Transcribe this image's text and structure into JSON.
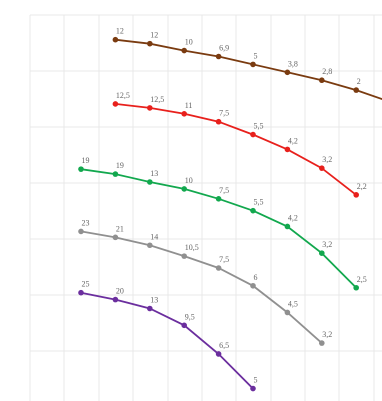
{
  "chart_data": {
    "type": "line",
    "title": "",
    "xlabel": "",
    "ylabel": "",
    "grid": true,
    "legend": "none",
    "ylim": [
      -4,
      30
    ],
    "x_count": 9,
    "series": [
      {
        "color": "#7a3b10",
        "x": [
          2,
          3,
          4,
          5,
          6,
          7,
          8,
          9,
          10
        ],
        "values": [
          27.5,
          27.1,
          26.4,
          25.8,
          25.0,
          24.2,
          23.4,
          22.4,
          21.2
        ],
        "labels": [
          "12",
          "12",
          "10",
          "6,9",
          "5",
          "3,8",
          "2,8",
          "2",
          ""
        ]
      },
      {
        "color": "#e8201c",
        "x": [
          2,
          3,
          4,
          5,
          6,
          7,
          8,
          9
        ],
        "values": [
          21.0,
          20.6,
          20.0,
          19.2,
          17.9,
          16.4,
          14.5,
          11.8
        ],
        "labels": [
          "12,5",
          "12,5",
          "11",
          "7,5",
          "5,5",
          "4,2",
          "3,2",
          "2,2"
        ]
      },
      {
        "color": "#12a84e",
        "x": [
          1,
          2,
          3,
          4,
          5,
          6,
          7,
          8,
          9
        ],
        "values": [
          14.4,
          13.9,
          13.1,
          12.4,
          11.4,
          10.2,
          8.6,
          5.9,
          2.4
        ],
        "labels": [
          "19",
          "19",
          "13",
          "10",
          "7,5",
          "5,5",
          "4,2",
          "3,2",
          "2,5"
        ]
      },
      {
        "color": "#909090",
        "x": [
          1,
          2,
          3,
          4,
          5,
          6,
          7,
          8
        ],
        "values": [
          8.1,
          7.5,
          6.7,
          5.6,
          4.4,
          2.6,
          -0.1,
          -3.2
        ],
        "labels": [
          "23",
          "21",
          "14",
          "10,5",
          "7,5",
          "6",
          "4,5",
          "3,2"
        ]
      },
      {
        "color": "#6b2e9e",
        "x": [
          1,
          2,
          3,
          4,
          5,
          6
        ],
        "values": [
          1.9,
          1.2,
          0.3,
          -1.4,
          -4.3,
          -7.8
        ],
        "labels": [
          "25",
          "20",
          "13",
          "9,5",
          "6,5",
          "5"
        ]
      }
    ]
  }
}
